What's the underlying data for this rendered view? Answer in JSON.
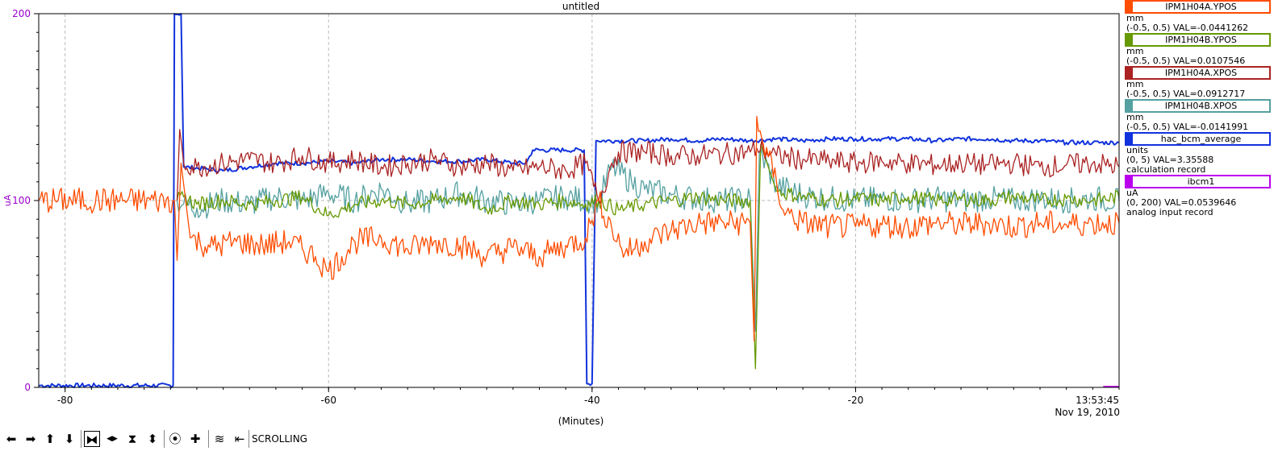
{
  "window": {
    "title": "untitled"
  },
  "chart_data": {
    "type": "line",
    "title": "untitled",
    "xlabel": "(Minutes)",
    "ylabel": "uA",
    "xlim": [
      -82,
      0
    ],
    "ylim": [
      0,
      200
    ],
    "x_ticks": [
      "-80",
      "-60",
      "-40",
      "-20"
    ],
    "y_ticks": [
      "0",
      "100",
      "200"
    ],
    "x_end_label": [
      "13:53:45",
      "Nov 19, 2010"
    ],
    "grid": true,
    "legend_position": "right",
    "series": [
      {
        "name": "IPM1H04A.YPOS",
        "color": "#ff4c00",
        "unit": "mm",
        "range": "(-0.5, 0.5)",
        "val": "VAL=-0.0441262",
        "desc": "",
        "points": [
          [
            -82,
            100
          ],
          [
            -71.7,
            100
          ],
          [
            -71.5,
            68
          ],
          [
            -71.2,
            120
          ],
          [
            -70.5,
            80
          ],
          [
            -69,
            75
          ],
          [
            -67,
            78
          ],
          [
            -65,
            76
          ],
          [
            -63,
            78
          ],
          [
            -61,
            70
          ],
          [
            -60,
            62
          ],
          [
            -58,
            78
          ],
          [
            -56,
            80
          ],
          [
            -54,
            74
          ],
          [
            -52,
            78
          ],
          [
            -50,
            76
          ],
          [
            -48,
            70
          ],
          [
            -46,
            75
          ],
          [
            -44,
            70
          ],
          [
            -42,
            76
          ],
          [
            -40.5,
            80
          ],
          [
            -39.5,
            100
          ],
          [
            -38.5,
            85
          ],
          [
            -37.5,
            72
          ],
          [
            -36,
            78
          ],
          [
            -34,
            84
          ],
          [
            -32,
            88
          ],
          [
            -30,
            88
          ],
          [
            -28,
            88
          ],
          [
            -27.7,
            25
          ],
          [
            -27.5,
            145
          ],
          [
            -27.0,
            130
          ],
          [
            -26,
            110
          ],
          [
            -25.5,
            95
          ],
          [
            -24,
            88
          ],
          [
            -22,
            86
          ],
          [
            -20,
            86
          ],
          [
            -18,
            87
          ],
          [
            -16,
            86
          ],
          [
            -14,
            88
          ],
          [
            -12,
            87
          ],
          [
            -10,
            88
          ],
          [
            -8,
            86
          ],
          [
            -6,
            88
          ],
          [
            -4,
            87
          ],
          [
            -2,
            88
          ],
          [
            0,
            88
          ]
        ]
      },
      {
        "name": "IPM1H04B.YPOS",
        "color": "#669900",
        "unit": "mm",
        "range": "(-0.5, 0.5)",
        "val": "VAL=0.0107546",
        "desc": "",
        "points": [
          [
            -71.5,
            100
          ],
          [
            -71,
            102
          ],
          [
            -70,
            98
          ],
          [
            -68,
            100
          ],
          [
            -66,
            98
          ],
          [
            -64,
            100
          ],
          [
            -62,
            102
          ],
          [
            -60,
            92
          ],
          [
            -58,
            98
          ],
          [
            -56,
            100
          ],
          [
            -54,
            98
          ],
          [
            -52,
            100
          ],
          [
            -50,
            102
          ],
          [
            -48,
            95
          ],
          [
            -46,
            100
          ],
          [
            -44,
            98
          ],
          [
            -42,
            100
          ],
          [
            -40.5,
            98
          ],
          [
            -39.5,
            100
          ],
          [
            -38,
            95
          ],
          [
            -36,
            98
          ],
          [
            -34,
            100
          ],
          [
            -32,
            102
          ],
          [
            -30,
            100
          ],
          [
            -28,
            100
          ],
          [
            -27.6,
            10
          ],
          [
            -27.2,
            130
          ],
          [
            -26,
            105
          ],
          [
            -24,
            102
          ],
          [
            -22,
            100
          ],
          [
            -20,
            101
          ],
          [
            -18,
            100
          ],
          [
            -16,
            102
          ],
          [
            -14,
            100
          ],
          [
            -12,
            101
          ],
          [
            -10,
            100
          ],
          [
            -8,
            102
          ],
          [
            -6,
            100
          ],
          [
            -4,
            101
          ],
          [
            -2,
            100
          ],
          [
            0,
            102
          ]
        ]
      },
      {
        "name": "IPM1H04A.XPOS",
        "color": "#aa2222",
        "unit": "mm",
        "range": "(-0.5, 0.5)",
        "val": "VAL=0.0912717",
        "desc": "",
        "points": [
          [
            -71.5,
            100
          ],
          [
            -71.3,
            138
          ],
          [
            -71,
            120
          ],
          [
            -70,
            118
          ],
          [
            -68,
            120
          ],
          [
            -66,
            122
          ],
          [
            -64,
            120
          ],
          [
            -62,
            124
          ],
          [
            -60,
            120
          ],
          [
            -58,
            122
          ],
          [
            -56,
            118
          ],
          [
            -54,
            120
          ],
          [
            -52,
            122
          ],
          [
            -50,
            118
          ],
          [
            -48,
            120
          ],
          [
            -46,
            116
          ],
          [
            -44,
            118
          ],
          [
            -42,
            116
          ],
          [
            -40.5,
            120
          ],
          [
            -39.5,
            100
          ],
          [
            -38.5,
            120
          ],
          [
            -38,
            126
          ],
          [
            -36,
            126
          ],
          [
            -34,
            124
          ],
          [
            -32,
            124
          ],
          [
            -30,
            125
          ],
          [
            -28,
            126
          ],
          [
            -27.5,
            128
          ],
          [
            -27,
            127
          ],
          [
            -26,
            124
          ],
          [
            -24,
            122
          ],
          [
            -22,
            121
          ],
          [
            -20,
            120
          ],
          [
            -18,
            121
          ],
          [
            -16,
            120
          ],
          [
            -14,
            119
          ],
          [
            -12,
            120
          ],
          [
            -10,
            119
          ],
          [
            -8,
            120
          ],
          [
            -6,
            118
          ],
          [
            -4,
            119
          ],
          [
            -2,
            120
          ],
          [
            0,
            118
          ]
        ]
      },
      {
        "name": "IPM1H04B.XPOS",
        "color": "#55a0a0",
        "unit": "mm",
        "range": "(-0.5, 0.5)",
        "val": "VAL=-0.0141991",
        "desc": "",
        "points": [
          [
            -71.5,
            100
          ],
          [
            -71,
            98
          ],
          [
            -70,
            96
          ],
          [
            -68,
            100
          ],
          [
            -66,
            98
          ],
          [
            -64,
            102
          ],
          [
            -62,
            100
          ],
          [
            -60,
            104
          ],
          [
            -58,
            100
          ],
          [
            -56,
            106
          ],
          [
            -54,
            98
          ],
          [
            -52,
            100
          ],
          [
            -50,
            104
          ],
          [
            -48,
            100
          ],
          [
            -46,
            98
          ],
          [
            -44,
            100
          ],
          [
            -42,
            102
          ],
          [
            -40.5,
            100
          ],
          [
            -39.5,
            100
          ],
          [
            -38.5,
            118
          ],
          [
            -37,
            110
          ],
          [
            -36,
            106
          ],
          [
            -34,
            103
          ],
          [
            -32,
            101
          ],
          [
            -30,
            100
          ],
          [
            -28,
            101
          ],
          [
            -27.6,
            30
          ],
          [
            -27.3,
            126
          ],
          [
            -26,
            108
          ],
          [
            -24,
            103
          ],
          [
            -22,
            101
          ],
          [
            -20,
            100
          ],
          [
            -18,
            101
          ],
          [
            -16,
            100
          ],
          [
            -14,
            101
          ],
          [
            -12,
            100
          ],
          [
            -10,
            101
          ],
          [
            -8,
            100
          ],
          [
            -6,
            101
          ],
          [
            -4,
            100
          ],
          [
            -2,
            101
          ],
          [
            0,
            100
          ]
        ]
      },
      {
        "name": "hac_bcm_average",
        "color": "#1133dd",
        "unit": "units",
        "range": "(0, 5)",
        "val": "VAL=3.35588",
        "desc": "calculation record",
        "points": [
          [
            -82,
            1
          ],
          [
            -71.8,
            1
          ],
          [
            -71.7,
            200
          ],
          [
            -71.2,
            200
          ],
          [
            -71,
            118
          ],
          [
            -68,
            116
          ],
          [
            -66,
            118
          ],
          [
            -64,
            120
          ],
          [
            -62,
            120
          ],
          [
            -60,
            121
          ],
          [
            -58,
            120
          ],
          [
            -56,
            122
          ],
          [
            -54,
            122
          ],
          [
            -52,
            121
          ],
          [
            -50,
            121
          ],
          [
            -48,
            122
          ],
          [
            -46,
            120
          ],
          [
            -45,
            120
          ],
          [
            -44.5,
            127
          ],
          [
            -42,
            127
          ],
          [
            -40.6,
            127
          ],
          [
            -40.4,
            2
          ],
          [
            -40,
            2
          ],
          [
            -39.7,
            132
          ],
          [
            -38,
            132
          ],
          [
            -36,
            132
          ],
          [
            -34,
            133
          ],
          [
            -32,
            132
          ],
          [
            -30,
            133
          ],
          [
            -28,
            132
          ],
          [
            -26,
            133
          ],
          [
            -24,
            132
          ],
          [
            -22,
            133
          ],
          [
            -20,
            133
          ],
          [
            -18,
            133
          ],
          [
            -16,
            133
          ],
          [
            -14,
            132
          ],
          [
            -12,
            133
          ],
          [
            -10,
            133
          ],
          [
            -8,
            132
          ],
          [
            -6,
            132
          ],
          [
            -4,
            131
          ],
          [
            -2,
            131
          ],
          [
            0,
            131
          ]
        ]
      },
      {
        "name": "ibcm1",
        "color": "#bb00ee",
        "unit": "uA",
        "range": "(0, 200)",
        "val": "VAL=0.0539646",
        "desc": "analog input record",
        "points": [
          [
            -1.2,
            0.5
          ],
          [
            0,
            0.5
          ]
        ]
      }
    ]
  },
  "toolbar": {
    "mode_label": "SCROLLING",
    "buttons": [
      {
        "icon": "arrow-left-icon",
        "glyph": "⬅"
      },
      {
        "icon": "arrow-right-icon",
        "glyph": "➡"
      },
      {
        "icon": "arrow-up-icon",
        "glyph": "⬆"
      },
      {
        "icon": "arrow-down-icon",
        "glyph": "⬇"
      },
      {
        "icon": "zoom-in-x-icon",
        "glyph": "⧓"
      },
      {
        "icon": "zoom-out-x-icon",
        "glyph": "◀▶"
      },
      {
        "icon": "zoom-in-y-icon",
        "glyph": "⧗"
      },
      {
        "icon": "zoom-out-y-icon",
        "glyph": "⬍"
      },
      {
        "icon": "reset-icon",
        "glyph": "⦿"
      },
      {
        "icon": "plus-icon",
        "glyph": "✚"
      },
      {
        "icon": "auto-scale-icon",
        "glyph": "≋"
      },
      {
        "icon": "scroll-mode-icon",
        "glyph": "⇤"
      }
    ]
  }
}
